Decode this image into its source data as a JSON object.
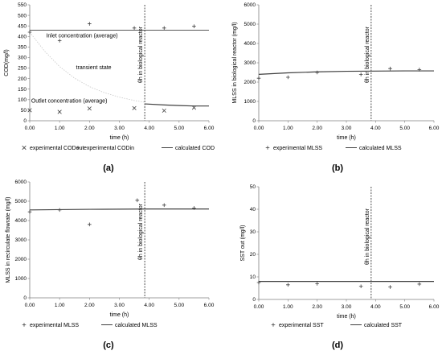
{
  "chart_data": [
    {
      "type": "scatter",
      "panel_label": "(a)",
      "xlabel": "time (h)",
      "ylabel": "COD(mg/l)",
      "xlim": [
        0,
        6
      ],
      "ylim": [
        0,
        550
      ],
      "xticks": [
        "0.00",
        "1.00",
        "2.00",
        "3.00",
        "4.00",
        "5.00",
        "6.00"
      ],
      "yticks": [
        "0",
        "50",
        "100",
        "150",
        "200",
        "250",
        "300",
        "350",
        "400",
        "450",
        "500",
        "550"
      ],
      "grid": false,
      "legend_position": "bottom",
      "series": [
        {
          "name": "experimental CODout",
          "marker": "x",
          "points": [
            [
              0.0,
              50
            ],
            [
              1.0,
              42
            ],
            [
              2.0,
              58
            ],
            [
              3.5,
              60
            ],
            [
              4.5,
              48
            ],
            [
              5.5,
              62
            ]
          ]
        },
        {
          "name": "experimental CODin",
          "marker": "+",
          "points": [
            [
              0.0,
              420
            ],
            [
              1.0,
              380
            ],
            [
              2.0,
              460
            ],
            [
              3.5,
              440
            ],
            [
              4.5,
              440
            ],
            [
              5.5,
              448
            ]
          ]
        },
        {
          "name": "calculated COD",
          "style": "line",
          "points": [
            [
              3.85,
              80
            ],
            [
              4.5,
              75
            ],
            [
              5.0,
              72
            ],
            [
              5.5,
              70
            ],
            [
              6.0,
              70
            ]
          ]
        }
      ],
      "reference_lines": {
        "inlet_average": 430,
        "transient_curve": [
          [
            0.0,
            420
          ],
          [
            0.5,
            330
          ],
          [
            1.0,
            257
          ],
          [
            1.5,
            202
          ],
          [
            2.0,
            162
          ],
          [
            2.5,
            133
          ],
          [
            3.0,
            112
          ],
          [
            3.5,
            96
          ],
          [
            3.85,
            88
          ]
        ],
        "vertical_x": 3.85
      },
      "annotations": {
        "inlet": "Inlet concentration (average)",
        "transient": "transient state",
        "outlet": "Outlet concentration (average)",
        "theta_h": "θh in biological reactor"
      }
    },
    {
      "type": "scatter",
      "panel_label": "(b)",
      "xlabel": "time (h)",
      "ylabel": "MLSS in biological reactor (mg/l)",
      "xlim": [
        0,
        6
      ],
      "ylim": [
        0,
        6000
      ],
      "xticks": [
        "0.00",
        "1.00",
        "2.00",
        "3.00",
        "4.00",
        "5.00",
        "6.00"
      ],
      "yticks": [
        "0",
        "1000",
        "2000",
        "3000",
        "4000",
        "5000",
        "6000"
      ],
      "grid": false,
      "legend_position": "bottom",
      "series": [
        {
          "name": "experimental MLSS",
          "marker": "+",
          "points": [
            [
              0.0,
              2200
            ],
            [
              1.0,
              2250
            ],
            [
              2.0,
              2500
            ],
            [
              3.5,
              2400
            ],
            [
              4.5,
              2700
            ],
            [
              5.5,
              2650
            ]
          ]
        },
        {
          "name": "calculated MLSS",
          "style": "line",
          "points": [
            [
              0.0,
              2400
            ],
            [
              1.0,
              2480
            ],
            [
              2.0,
              2530
            ],
            [
              3.0,
              2560
            ],
            [
              4.0,
              2570
            ],
            [
              5.0,
              2580
            ],
            [
              6.0,
              2580
            ]
          ]
        }
      ],
      "reference_lines": {
        "vertical_x": 3.85
      },
      "annotations": {
        "theta_h": "θh in biological reactor"
      }
    },
    {
      "type": "scatter",
      "panel_label": "(c)",
      "xlabel": "time (h)",
      "ylabel": "MLSS in recirculate flowrate (mg/l)",
      "xlim": [
        0,
        6
      ],
      "ylim": [
        0,
        6000
      ],
      "xticks": [
        "0.00",
        "1.00",
        "2.00",
        "3.00",
        "4.00",
        "5.00",
        "6.00"
      ],
      "yticks": [
        "0",
        "1000",
        "2000",
        "3000",
        "4000",
        "5000",
        "6000"
      ],
      "grid": false,
      "legend_position": "bottom",
      "series": [
        {
          "name": "experimental MLSS",
          "marker": "+",
          "points": [
            [
              0.0,
              4450
            ],
            [
              1.0,
              4550
            ],
            [
              2.0,
              3800
            ],
            [
              3.6,
              5050
            ],
            [
              4.5,
              4800
            ],
            [
              5.5,
              4650
            ]
          ]
        },
        {
          "name": "calculated MLSS",
          "style": "line",
          "points": [
            [
              0.0,
              4550
            ],
            [
              2.0,
              4580
            ],
            [
              4.0,
              4600
            ],
            [
              6.0,
              4600
            ]
          ]
        }
      ],
      "reference_lines": {
        "vertical_x": 3.85
      },
      "annotations": {
        "theta_h": "θh in biological reactor"
      }
    },
    {
      "type": "scatter",
      "panel_label": "(d)",
      "xlabel": "time (h)",
      "ylabel": "SST out (mg/l)",
      "xlim": [
        0,
        6
      ],
      "ylim": [
        0,
        50
      ],
      "xticks": [
        "0.00",
        "1.00",
        "2.00",
        "3.00",
        "4.00",
        "5.00",
        "6.00"
      ],
      "yticks": [
        "0",
        "10",
        "20",
        "30",
        "40",
        "50"
      ],
      "grid": false,
      "legend_position": "bottom",
      "series": [
        {
          "name": "experimental SST",
          "marker": "+",
          "points": [
            [
              0.0,
              7.5
            ],
            [
              1.0,
              6.5
            ],
            [
              2.0,
              7.0
            ],
            [
              3.5,
              5.8
            ],
            [
              4.5,
              5.5
            ],
            [
              5.5,
              6.8
            ]
          ]
        },
        {
          "name": "calculated SST",
          "style": "line",
          "points": [
            [
              0.0,
              8.0
            ],
            [
              2.0,
              8.0
            ],
            [
              4.0,
              8.0
            ],
            [
              6.0,
              8.0
            ]
          ]
        }
      ],
      "reference_lines": {
        "vertical_x": 3.85
      },
      "annotations": {
        "theta_h": "θh in biological reactor"
      }
    }
  ]
}
